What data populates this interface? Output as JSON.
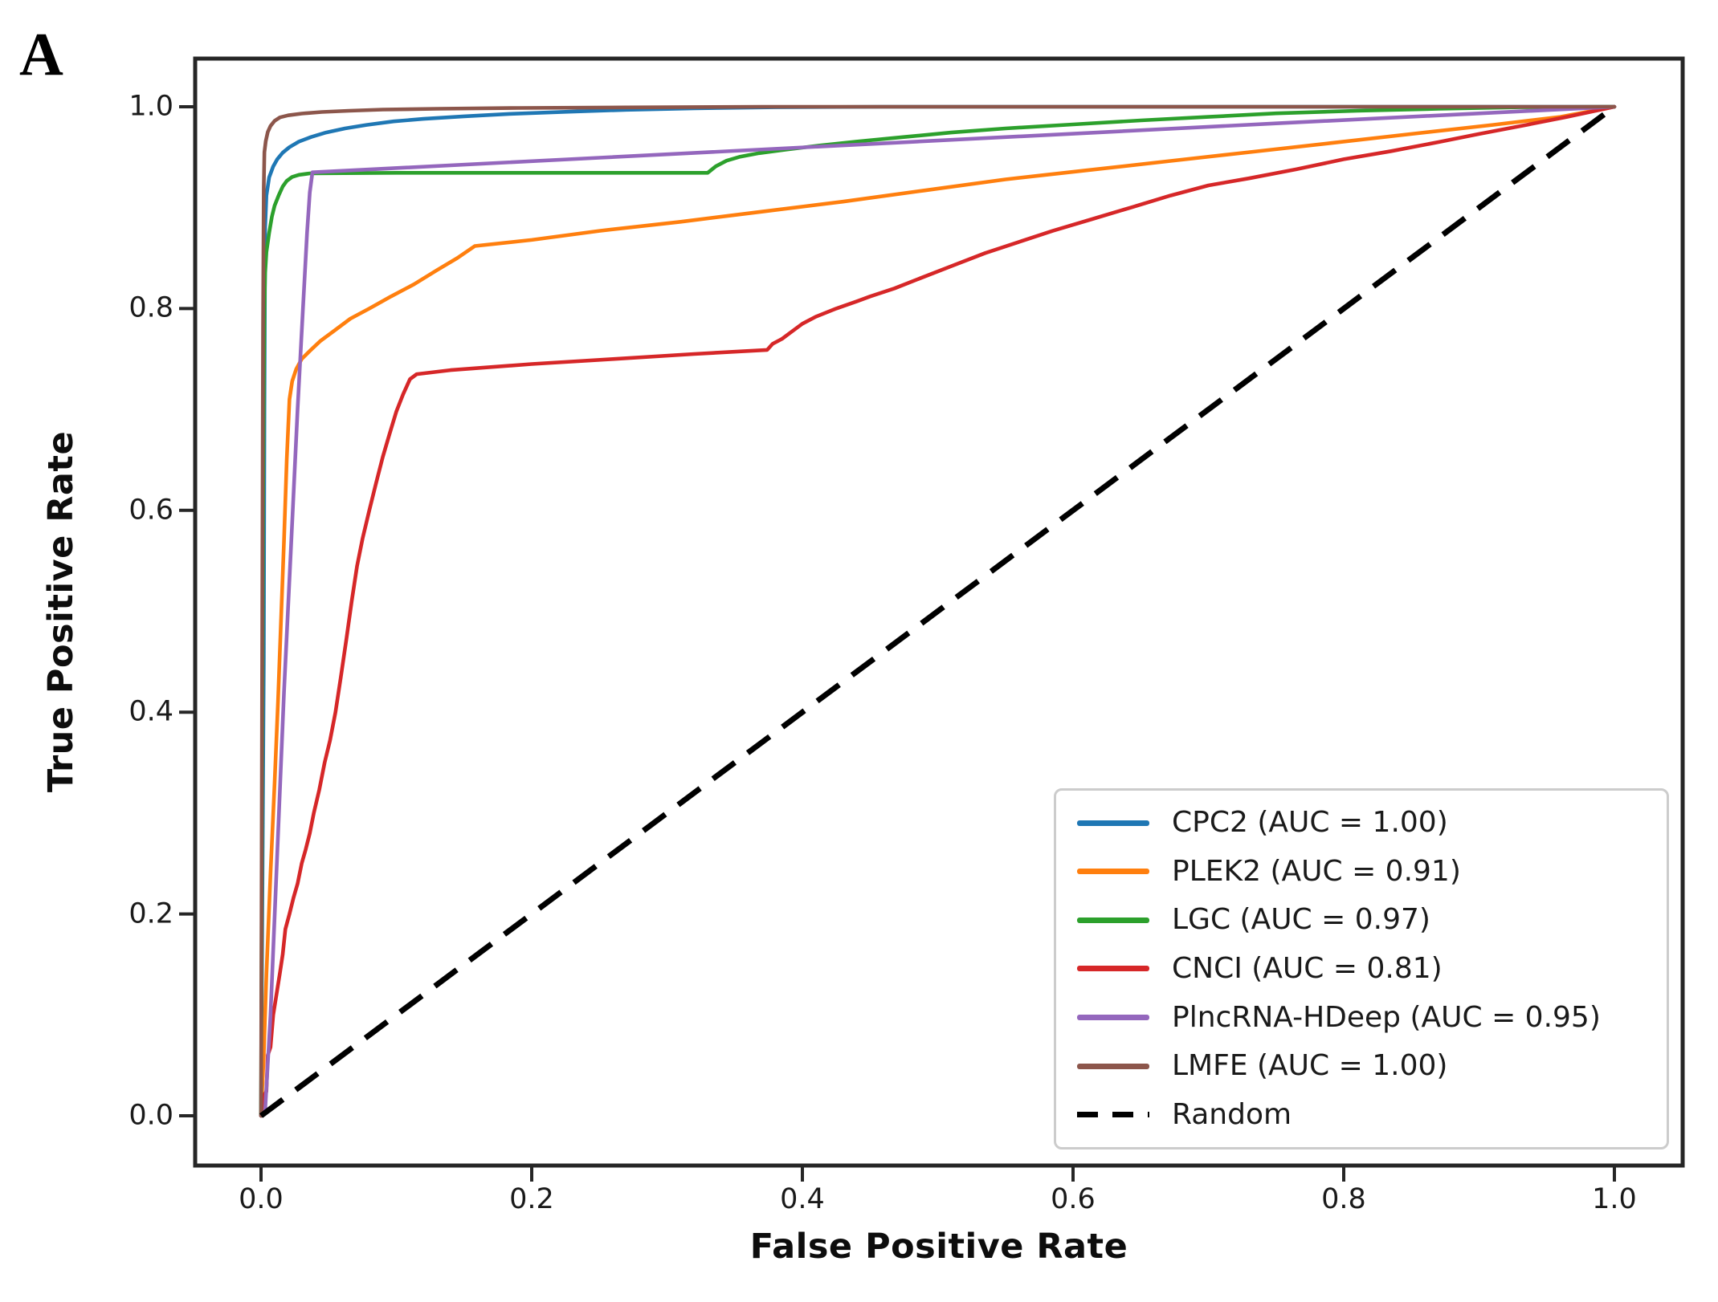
{
  "panel_label": "A",
  "axes": {
    "x_label": "False Positive Rate",
    "y_label": "True Positive Rate",
    "x_ticks": [
      "0.0",
      "0.2",
      "0.4",
      "0.6",
      "0.8",
      "1.0"
    ],
    "y_ticks": [
      "0.0",
      "0.2",
      "0.4",
      "0.6",
      "0.8",
      "1.0"
    ]
  },
  "chart_data": {
    "type": "line",
    "title": "",
    "xlabel": "False Positive Rate",
    "ylabel": "True Positive Rate",
    "xlim": [
      0,
      1
    ],
    "ylim": [
      0,
      1
    ],
    "grid": false,
    "legend_position": "lower right",
    "series": [
      {
        "id": "cpc2",
        "name": "CPC2 (AUC = 1.00)",
        "auc": 1.0,
        "color": "#1f77b4",
        "dashed": false,
        "points": [
          [
            0,
            0
          ],
          [
            0.002,
            0.45
          ],
          [
            0.0025,
            0.7
          ],
          [
            0.003,
            0.88
          ],
          [
            0.004,
            0.912
          ],
          [
            0.006,
            0.93
          ],
          [
            0.009,
            0.941
          ],
          [
            0.012,
            0.948
          ],
          [
            0.016,
            0.9545
          ],
          [
            0.021,
            0.96
          ],
          [
            0.028,
            0.9655
          ],
          [
            0.037,
            0.97
          ],
          [
            0.048,
            0.9745
          ],
          [
            0.062,
            0.9785
          ],
          [
            0.078,
            0.982
          ],
          [
            0.098,
            0.9855
          ],
          [
            0.12,
            0.988
          ],
          [
            0.15,
            0.9905
          ],
          [
            0.185,
            0.993
          ],
          [
            0.225,
            0.995
          ],
          [
            0.27,
            0.997
          ],
          [
            0.32,
            0.9985
          ],
          [
            0.38,
            0.9995
          ],
          [
            0.46,
            1.0
          ],
          [
            1,
            1
          ]
        ]
      },
      {
        "id": "plek2",
        "name": "PLEK2 (AUC = 0.91)",
        "auc": 0.91,
        "color": "#ff7f0e",
        "dashed": false,
        "points": [
          [
            0,
            0
          ],
          [
            0.002,
            0.06
          ],
          [
            0.004,
            0.14
          ],
          [
            0.007,
            0.24
          ],
          [
            0.01,
            0.33
          ],
          [
            0.0125,
            0.41
          ],
          [
            0.015,
            0.5
          ],
          [
            0.017,
            0.57
          ],
          [
            0.019,
            0.65
          ],
          [
            0.021,
            0.71
          ],
          [
            0.023,
            0.728
          ],
          [
            0.026,
            0.74
          ],
          [
            0.03,
            0.75
          ],
          [
            0.036,
            0.758
          ],
          [
            0.044,
            0.768
          ],
          [
            0.054,
            0.778
          ],
          [
            0.066,
            0.79
          ],
          [
            0.08,
            0.8
          ],
          [
            0.096,
            0.812
          ],
          [
            0.113,
            0.824
          ],
          [
            0.13,
            0.838
          ],
          [
            0.145,
            0.85
          ],
          [
            0.158,
            0.862
          ],
          [
            0.2,
            0.868
          ],
          [
            0.25,
            0.877
          ],
          [
            0.31,
            0.886
          ],
          [
            0.37,
            0.896
          ],
          [
            0.43,
            0.906
          ],
          [
            0.49,
            0.917
          ],
          [
            0.55,
            0.928
          ],
          [
            0.61,
            0.937
          ],
          [
            0.67,
            0.946
          ],
          [
            0.73,
            0.955
          ],
          [
            0.79,
            0.964
          ],
          [
            0.85,
            0.973
          ],
          [
            0.91,
            0.982
          ],
          [
            0.96,
            0.99
          ],
          [
            1,
            1
          ]
        ]
      },
      {
        "id": "lgc",
        "name": "LGC (AUC = 0.97)",
        "auc": 0.97,
        "color": "#2ca02c",
        "dashed": false,
        "points": [
          [
            0,
            0
          ],
          [
            0.0015,
            0.6
          ],
          [
            0.002,
            0.72
          ],
          [
            0.0025,
            0.8
          ],
          [
            0.003,
            0.835
          ],
          [
            0.004,
            0.856
          ],
          [
            0.006,
            0.875
          ],
          [
            0.008,
            0.891
          ],
          [
            0.01,
            0.902
          ],
          [
            0.013,
            0.912
          ],
          [
            0.016,
            0.921
          ],
          [
            0.019,
            0.9265
          ],
          [
            0.023,
            0.9305
          ],
          [
            0.028,
            0.9325
          ],
          [
            0.036,
            0.934
          ],
          [
            0.1,
            0.9345
          ],
          [
            0.2,
            0.9345
          ],
          [
            0.33,
            0.9345
          ],
          [
            0.336,
            0.941
          ],
          [
            0.344,
            0.9465
          ],
          [
            0.354,
            0.9505
          ],
          [
            0.368,
            0.954
          ],
          [
            0.388,
            0.9575
          ],
          [
            0.412,
            0.9615
          ],
          [
            0.44,
            0.9655
          ],
          [
            0.475,
            0.97
          ],
          [
            0.51,
            0.9745
          ],
          [
            0.55,
            0.9785
          ],
          [
            0.6,
            0.9825
          ],
          [
            0.65,
            0.9865
          ],
          [
            0.7,
            0.99
          ],
          [
            0.75,
            0.9935
          ],
          [
            0.81,
            0.996
          ],
          [
            0.87,
            0.998
          ],
          [
            0.93,
            0.9995
          ],
          [
            1,
            1
          ]
        ]
      },
      {
        "id": "cnci",
        "name": "CNCI (AUC = 0.81)",
        "auc": 0.81,
        "color": "#d62728",
        "dashed": false,
        "points": [
          [
            0,
            0
          ],
          [
            0.002,
            0.02
          ],
          [
            0.004,
            0.024
          ],
          [
            0.005,
            0.06
          ],
          [
            0.007,
            0.068
          ],
          [
            0.009,
            0.1
          ],
          [
            0.012,
            0.125
          ],
          [
            0.014,
            0.142
          ],
          [
            0.016,
            0.16
          ],
          [
            0.018,
            0.185
          ],
          [
            0.021,
            0.2
          ],
          [
            0.024,
            0.216
          ],
          [
            0.027,
            0.23
          ],
          [
            0.03,
            0.25
          ],
          [
            0.033,
            0.264
          ],
          [
            0.036,
            0.28
          ],
          [
            0.039,
            0.3
          ],
          [
            0.043,
            0.323
          ],
          [
            0.047,
            0.35
          ],
          [
            0.051,
            0.372
          ],
          [
            0.055,
            0.4
          ],
          [
            0.059,
            0.435
          ],
          [
            0.063,
            0.472
          ],
          [
            0.067,
            0.51
          ],
          [
            0.071,
            0.545
          ],
          [
            0.075,
            0.572
          ],
          [
            0.08,
            0.6
          ],
          [
            0.085,
            0.627
          ],
          [
            0.09,
            0.653
          ],
          [
            0.095,
            0.676
          ],
          [
            0.1,
            0.698
          ],
          [
            0.105,
            0.715
          ],
          [
            0.11,
            0.73
          ],
          [
            0.115,
            0.735
          ],
          [
            0.14,
            0.739
          ],
          [
            0.2,
            0.745
          ],
          [
            0.26,
            0.75
          ],
          [
            0.32,
            0.755
          ],
          [
            0.374,
            0.759
          ],
          [
            0.378,
            0.765
          ],
          [
            0.385,
            0.77
          ],
          [
            0.392,
            0.777
          ],
          [
            0.4,
            0.785
          ],
          [
            0.41,
            0.792
          ],
          [
            0.425,
            0.8
          ],
          [
            0.44,
            0.807
          ],
          [
            0.45,
            0.812
          ],
          [
            0.468,
            0.82
          ],
          [
            0.487,
            0.83
          ],
          [
            0.51,
            0.842
          ],
          [
            0.535,
            0.855
          ],
          [
            0.56,
            0.866
          ],
          [
            0.585,
            0.877
          ],
          [
            0.615,
            0.889
          ],
          [
            0.645,
            0.901
          ],
          [
            0.672,
            0.912
          ],
          [
            0.7,
            0.922
          ],
          [
            0.73,
            0.929
          ],
          [
            0.765,
            0.938
          ],
          [
            0.8,
            0.948
          ],
          [
            0.835,
            0.956
          ],
          [
            0.87,
            0.965
          ],
          [
            0.9,
            0.973
          ],
          [
            0.935,
            0.982
          ],
          [
            0.965,
            0.99
          ],
          [
            1,
            1
          ]
        ]
      },
      {
        "id": "plncrna-hdeep",
        "name": "PlncRNA-HDeep (AUC = 0.95)",
        "auc": 0.95,
        "color": "#9467bd",
        "dashed": false,
        "points": [
          [
            0,
            0
          ],
          [
            0.003,
            0.005
          ],
          [
            0.007,
            0.1
          ],
          [
            0.012,
            0.26
          ],
          [
            0.017,
            0.42
          ],
          [
            0.022,
            0.56
          ],
          [
            0.027,
            0.7
          ],
          [
            0.031,
            0.8
          ],
          [
            0.034,
            0.875
          ],
          [
            0.036,
            0.915
          ],
          [
            0.038,
            0.935
          ],
          [
            0.25,
            0.9495
          ],
          [
            0.5,
            0.9665
          ],
          [
            0.75,
            0.9835
          ],
          [
            1,
            1
          ]
        ]
      },
      {
        "id": "lmfe",
        "name": "LMFE (AUC = 1.00)",
        "auc": 1.0,
        "color": "#8c564b",
        "dashed": false,
        "points": [
          [
            0,
            0
          ],
          [
            0.001,
            0.55
          ],
          [
            0.0015,
            0.78
          ],
          [
            0.002,
            0.92
          ],
          [
            0.0025,
            0.955
          ],
          [
            0.0035,
            0.966
          ],
          [
            0.005,
            0.975
          ],
          [
            0.007,
            0.981
          ],
          [
            0.01,
            0.986
          ],
          [
            0.014,
            0.9895
          ],
          [
            0.02,
            0.9915
          ],
          [
            0.03,
            0.9932
          ],
          [
            0.045,
            0.9948
          ],
          [
            0.065,
            0.996
          ],
          [
            0.09,
            0.9972
          ],
          [
            0.13,
            0.998
          ],
          [
            0.19,
            0.9988
          ],
          [
            0.27,
            0.9994
          ],
          [
            0.37,
            1.0
          ],
          [
            1,
            1
          ]
        ]
      },
      {
        "id": "random",
        "name": "Random",
        "color": "#000000",
        "dashed": true,
        "points": [
          [
            0,
            0
          ],
          [
            1,
            1
          ]
        ]
      }
    ]
  }
}
